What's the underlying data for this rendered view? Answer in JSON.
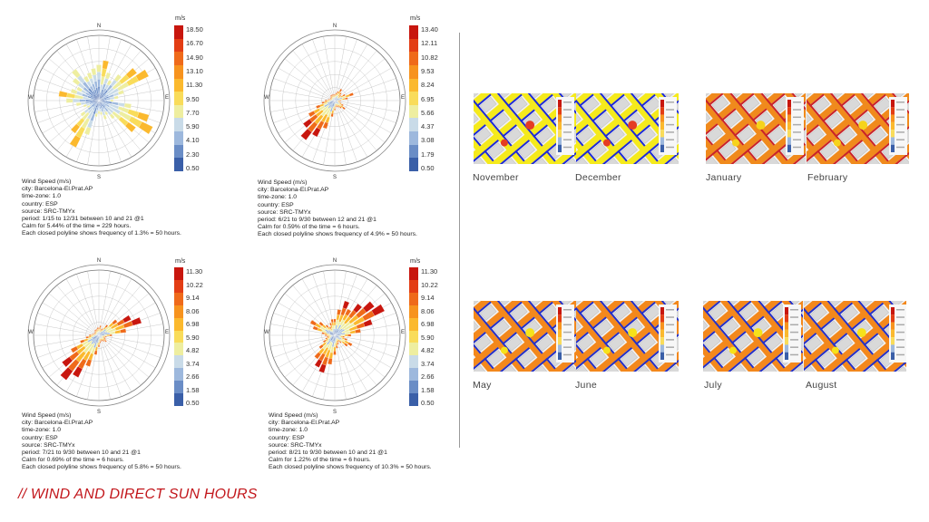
{
  "title": "// WIND AND DIRECT SUN HOURS",
  "compass": {
    "n": "N",
    "e": "E",
    "s": "S",
    "w": "W"
  },
  "scale_colors": [
    "#3a5fa8",
    "#6a8dc6",
    "#9db8dd",
    "#c9dbe8",
    "#eeeea0",
    "#f9dc5a",
    "#fbb92e",
    "#f7931e",
    "#ef6a1a",
    "#e33d14",
    "#c8160e"
  ],
  "wind_roses": [
    {
      "unit": "m/s",
      "scale": [
        "18.50",
        "16.70",
        "14.90",
        "13.10",
        "11.30",
        "9.50",
        "7.70",
        "5.90",
        "4.10",
        "2.30",
        "0.50"
      ],
      "info": [
        "Wind Speed (m/s)",
        "city: Barcelona-El.Prat.AP",
        "time-zone: 1.0",
        "country: ESP",
        "source: SRC-TMYx",
        "period: 1/15 to 12/31 between 10 and 21 @1",
        "Calm for 5.44% of the time = 229 hours.",
        "Each closed polyline shows frequency of 1.3% = 50 hours."
      ],
      "petals": [
        0.55,
        0.62,
        0.45,
        0.35,
        0.5,
        0.72,
        0.85,
        0.4,
        0.3,
        0.22,
        0.5,
        0.8,
        0.92,
        0.7,
        0.35,
        0.25,
        0.3,
        0.22,
        0.2,
        0.25,
        0.55,
        0.8,
        0.62,
        0.35,
        0.2,
        0.25,
        0.35,
        0.5,
        0.62,
        0.45,
        0.38,
        0.5,
        0.6,
        0.42,
        0.45,
        0.5
      ]
    },
    {
      "unit": "m/s",
      "scale": [
        "13.40",
        "12.11",
        "10.82",
        "9.53",
        "8.24",
        "6.95",
        "5.66",
        "4.37",
        "3.08",
        "1.79",
        "0.50"
      ],
      "info": [
        "Wind Speed (m/s)",
        "city: Barcelona-El.Prat.AP",
        "time-zone: 1.0",
        "country: ESP",
        "source: SRC-TMYx",
        "period: 6/21 to 9/30 between 12 and 21 @1",
        "Calm for 0.59% of the time = 6 hours.",
        "Each closed polyline shows frequency of 4.9% = 50 hours."
      ],
      "petals": [
        0.1,
        0.12,
        0.15,
        0.2,
        0.15,
        0.12,
        0.18,
        0.3,
        0.2,
        0.1,
        0.08,
        0.1,
        0.15,
        0.2,
        0.15,
        0.12,
        0.1,
        0.1,
        0.15,
        0.25,
        0.45,
        0.62,
        0.75,
        0.6,
        0.45,
        0.3,
        0.2,
        0.15,
        0.1,
        0.08,
        0.08,
        0.08,
        0.1,
        0.1,
        0.1,
        0.1
      ]
    },
    {
      "unit": "m/s",
      "scale": [
        "11.30",
        "10.22",
        "9.14",
        "8.06",
        "6.98",
        "5.90",
        "4.82",
        "3.74",
        "2.66",
        "1.58",
        "0.50"
      ],
      "info": [
        "Wind Speed (m/s)",
        "city: Barcelona-El.Prat.AP",
        "time-zone: 1.0",
        "country: ESP",
        "source: SRC-TMYx",
        "period: 7/21 to 9/30 between 10 and 21 @1",
        "Calm for 0.69% of the time = 6 hours.",
        "Each closed polyline shows frequency of 5.8% = 50 hours."
      ],
      "petals": [
        0.12,
        0.15,
        0.1,
        0.12,
        0.2,
        0.35,
        0.55,
        0.68,
        0.42,
        0.2,
        0.12,
        0.1,
        0.12,
        0.15,
        0.12,
        0.1,
        0.1,
        0.12,
        0.18,
        0.3,
        0.5,
        0.72,
        0.85,
        0.7,
        0.48,
        0.3,
        0.2,
        0.15,
        0.1,
        0.08,
        0.08,
        0.08,
        0.1,
        0.1,
        0.1,
        0.12
      ]
    },
    {
      "unit": "m/s",
      "scale": [
        "11.30",
        "10.22",
        "9.14",
        "8.06",
        "6.98",
        "5.90",
        "4.82",
        "3.74",
        "2.66",
        "1.58",
        "0.50"
      ],
      "info": [
        "Wind Speed (m/s)",
        "city: Barcelona-El.Prat.AP",
        "time-zone: 1.0",
        "country: ESP",
        "source: SRC-TMYx",
        "period: 8/21 to 9/30 between 10 and 21 @1",
        "Calm for 1.22% of the time = 6 hours.",
        "Each closed polyline shows frequency of 10.3% = 50 hours."
      ],
      "petals": [
        0.25,
        0.4,
        0.55,
        0.45,
        0.6,
        0.75,
        0.85,
        0.6,
        0.4,
        0.25,
        0.15,
        0.2,
        0.3,
        0.25,
        0.15,
        0.12,
        0.15,
        0.2,
        0.3,
        0.45,
        0.6,
        0.55,
        0.45,
        0.3,
        0.2,
        0.15,
        0.12,
        0.15,
        0.2,
        0.35,
        0.42,
        0.3,
        0.2,
        0.15,
        0.2,
        0.25
      ]
    }
  ],
  "months": [
    {
      "label": "November",
      "style": "winter"
    },
    {
      "label": "December",
      "style": "winter"
    },
    {
      "label": "January",
      "style": "warm"
    },
    {
      "label": "February",
      "style": "warm"
    },
    {
      "label": "May",
      "style": "summer"
    },
    {
      "label": "June",
      "style": "summer"
    },
    {
      "label": "July",
      "style": "summer"
    },
    {
      "label": "August",
      "style": "summer"
    }
  ]
}
